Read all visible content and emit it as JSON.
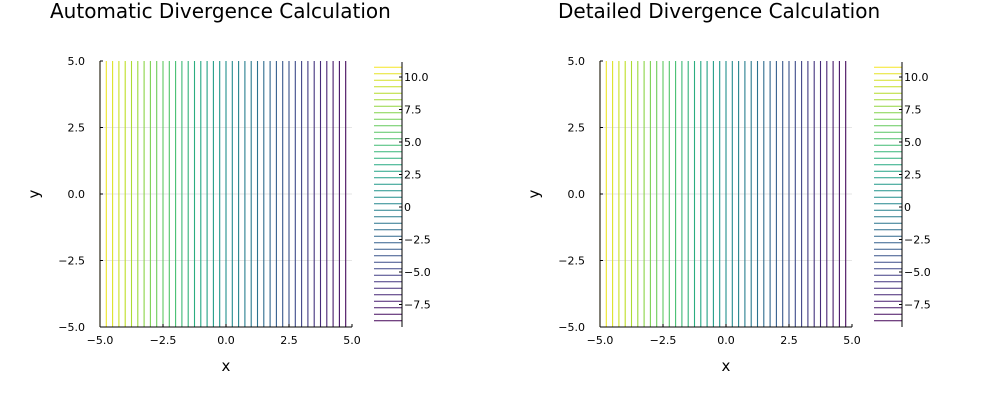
{
  "chart_data": [
    {
      "type": "contour",
      "title": "Automatic Divergence Calculation",
      "xlabel": "x",
      "ylabel": "y",
      "xlim": [
        -5.0,
        5.0
      ],
      "ylim": [
        -5.0,
        5.0
      ],
      "xticks": [
        "−5.0",
        "−2.5",
        "0.0",
        "2.5",
        "5.0"
      ],
      "yticks": [
        "−5.0",
        "−2.5",
        "0.0",
        "2.5",
        "5.0"
      ],
      "grid": true,
      "colormap": "viridis",
      "colorbar": {
        "range": [
          -9.0,
          11.0
        ],
        "ticks": [
          "10.0",
          "7.5",
          "5.0",
          "2.5",
          "0",
          "−2.5",
          "−5.0",
          "−7.5"
        ],
        "tick_values": [
          10.0,
          7.5,
          5.0,
          2.5,
          0,
          -2.5,
          -5.0,
          -7.5
        ],
        "level_count": 40
      },
      "field": {
        "slope": -2.0,
        "intercept": 1.0
      },
      "level_x_values": [
        -5.0,
        -4.75,
        -4.5,
        -4.25,
        -4.0,
        -3.75,
        -3.5,
        -3.25,
        -3.0,
        -2.75,
        -2.5,
        -2.25,
        -2.0,
        -1.75,
        -1.5,
        -1.25,
        -1.0,
        -0.75,
        -0.5,
        -0.25,
        0.0,
        0.25,
        0.5,
        0.75,
        1.0,
        1.25,
        1.5,
        1.75,
        2.0,
        2.25,
        2.5,
        2.75,
        3.0,
        3.25,
        3.5,
        3.75,
        4.0,
        4.25,
        4.5,
        4.75
      ]
    },
    {
      "type": "contour",
      "title": "Detailed Divergence Calculation",
      "xlabel": "x",
      "ylabel": "y",
      "xlim": [
        -5.0,
        5.0
      ],
      "ylim": [
        -5.0,
        5.0
      ],
      "xticks": [
        "−5.0",
        "−2.5",
        "0.0",
        "2.5",
        "5.0"
      ],
      "yticks": [
        "−5.0",
        "−2.5",
        "0.0",
        "2.5",
        "5.0"
      ],
      "grid": true,
      "colormap": "viridis",
      "colorbar": {
        "range": [
          -9.0,
          11.0
        ],
        "ticks": [
          "10.0",
          "7.5",
          "5.0",
          "2.5",
          "0",
          "−2.5",
          "−5.0",
          "−7.5"
        ],
        "tick_values": [
          10.0,
          7.5,
          5.0,
          2.5,
          0,
          -2.5,
          -5.0,
          -7.5
        ],
        "level_count": 40
      },
      "field": {
        "slope": -2.0,
        "intercept": 1.0
      },
      "level_x_values": [
        -5.0,
        -4.75,
        -4.5,
        -4.25,
        -4.0,
        -3.75,
        -3.5,
        -3.25,
        -3.0,
        -2.75,
        -2.5,
        -2.25,
        -2.0,
        -1.75,
        -1.5,
        -1.25,
        -1.0,
        -0.75,
        -0.5,
        -0.25,
        0.0,
        0.25,
        0.5,
        0.75,
        1.0,
        1.25,
        1.5,
        1.75,
        2.0,
        2.25,
        2.5,
        2.75,
        3.0,
        3.25,
        3.5,
        3.75,
        4.0,
        4.25,
        4.5,
        4.75
      ]
    }
  ]
}
